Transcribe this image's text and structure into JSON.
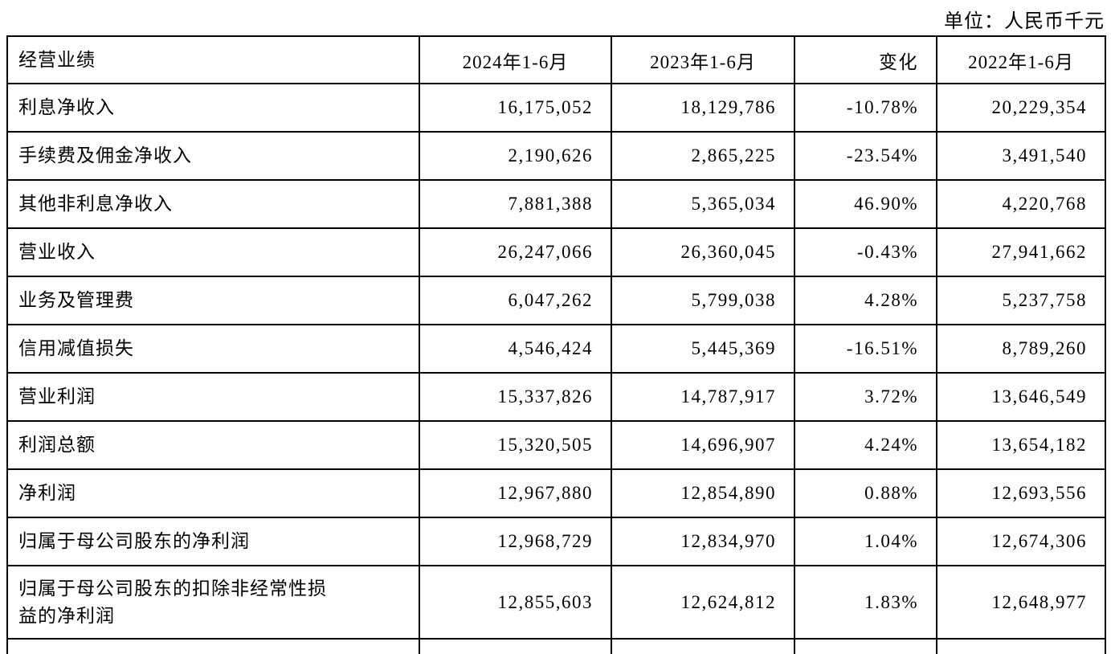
{
  "page": {
    "unit_note": "单位：人民币千元"
  },
  "table": {
    "header": {
      "col0": "经营业绩",
      "col1": "2024年1-6月",
      "col2": "2023年1-6月",
      "col3": "变化",
      "col4": "2022年1-6月"
    },
    "rows": [
      {
        "label": "利息净收入",
        "values": [
          "16,175,052",
          "18,129,786",
          "-10.78%",
          "20,229,354"
        ]
      },
      {
        "label": "手续费及佣金净收入",
        "values": [
          "2,190,626",
          "2,865,225",
          "-23.54%",
          "3,491,540"
        ]
      },
      {
        "label": "其他非利息净收入",
        "values": [
          "7,881,388",
          "5,365,034",
          "46.90%",
          "4,220,768"
        ]
      },
      {
        "label": "营业收入",
        "values": [
          "26,247,066",
          "26,360,045",
          "-0.43%",
          "27,941,662"
        ]
      },
      {
        "label": "业务及管理费",
        "values": [
          "6,047,262",
          "5,799,038",
          "4.28%",
          "5,237,758"
        ]
      },
      {
        "label": "信用减值损失",
        "values": [
          "4,546,424",
          "5,445,369",
          "-16.51%",
          "8,789,260"
        ]
      },
      {
        "label": "营业利润",
        "values": [
          "15,337,826",
          "14,787,917",
          "3.72%",
          "13,646,549"
        ]
      },
      {
        "label": "利润总额",
        "values": [
          "15,320,505",
          "14,696,907",
          "4.24%",
          "13,654,182"
        ]
      },
      {
        "label": "净利润",
        "values": [
          "12,967,880",
          "12,854,890",
          "0.88%",
          "12,693,556"
        ]
      },
      {
        "label": "归属于母公司股东的净利润",
        "values": [
          "12,968,729",
          "12,834,970",
          "1.04%",
          "12,674,306"
        ]
      },
      {
        "label": "归属于母公司股东的扣除非经常性损益的净利润",
        "values": [
          "12,855,603",
          "12,624,812",
          "1.83%",
          "12,648,977"
        ]
      }
    ]
  }
}
